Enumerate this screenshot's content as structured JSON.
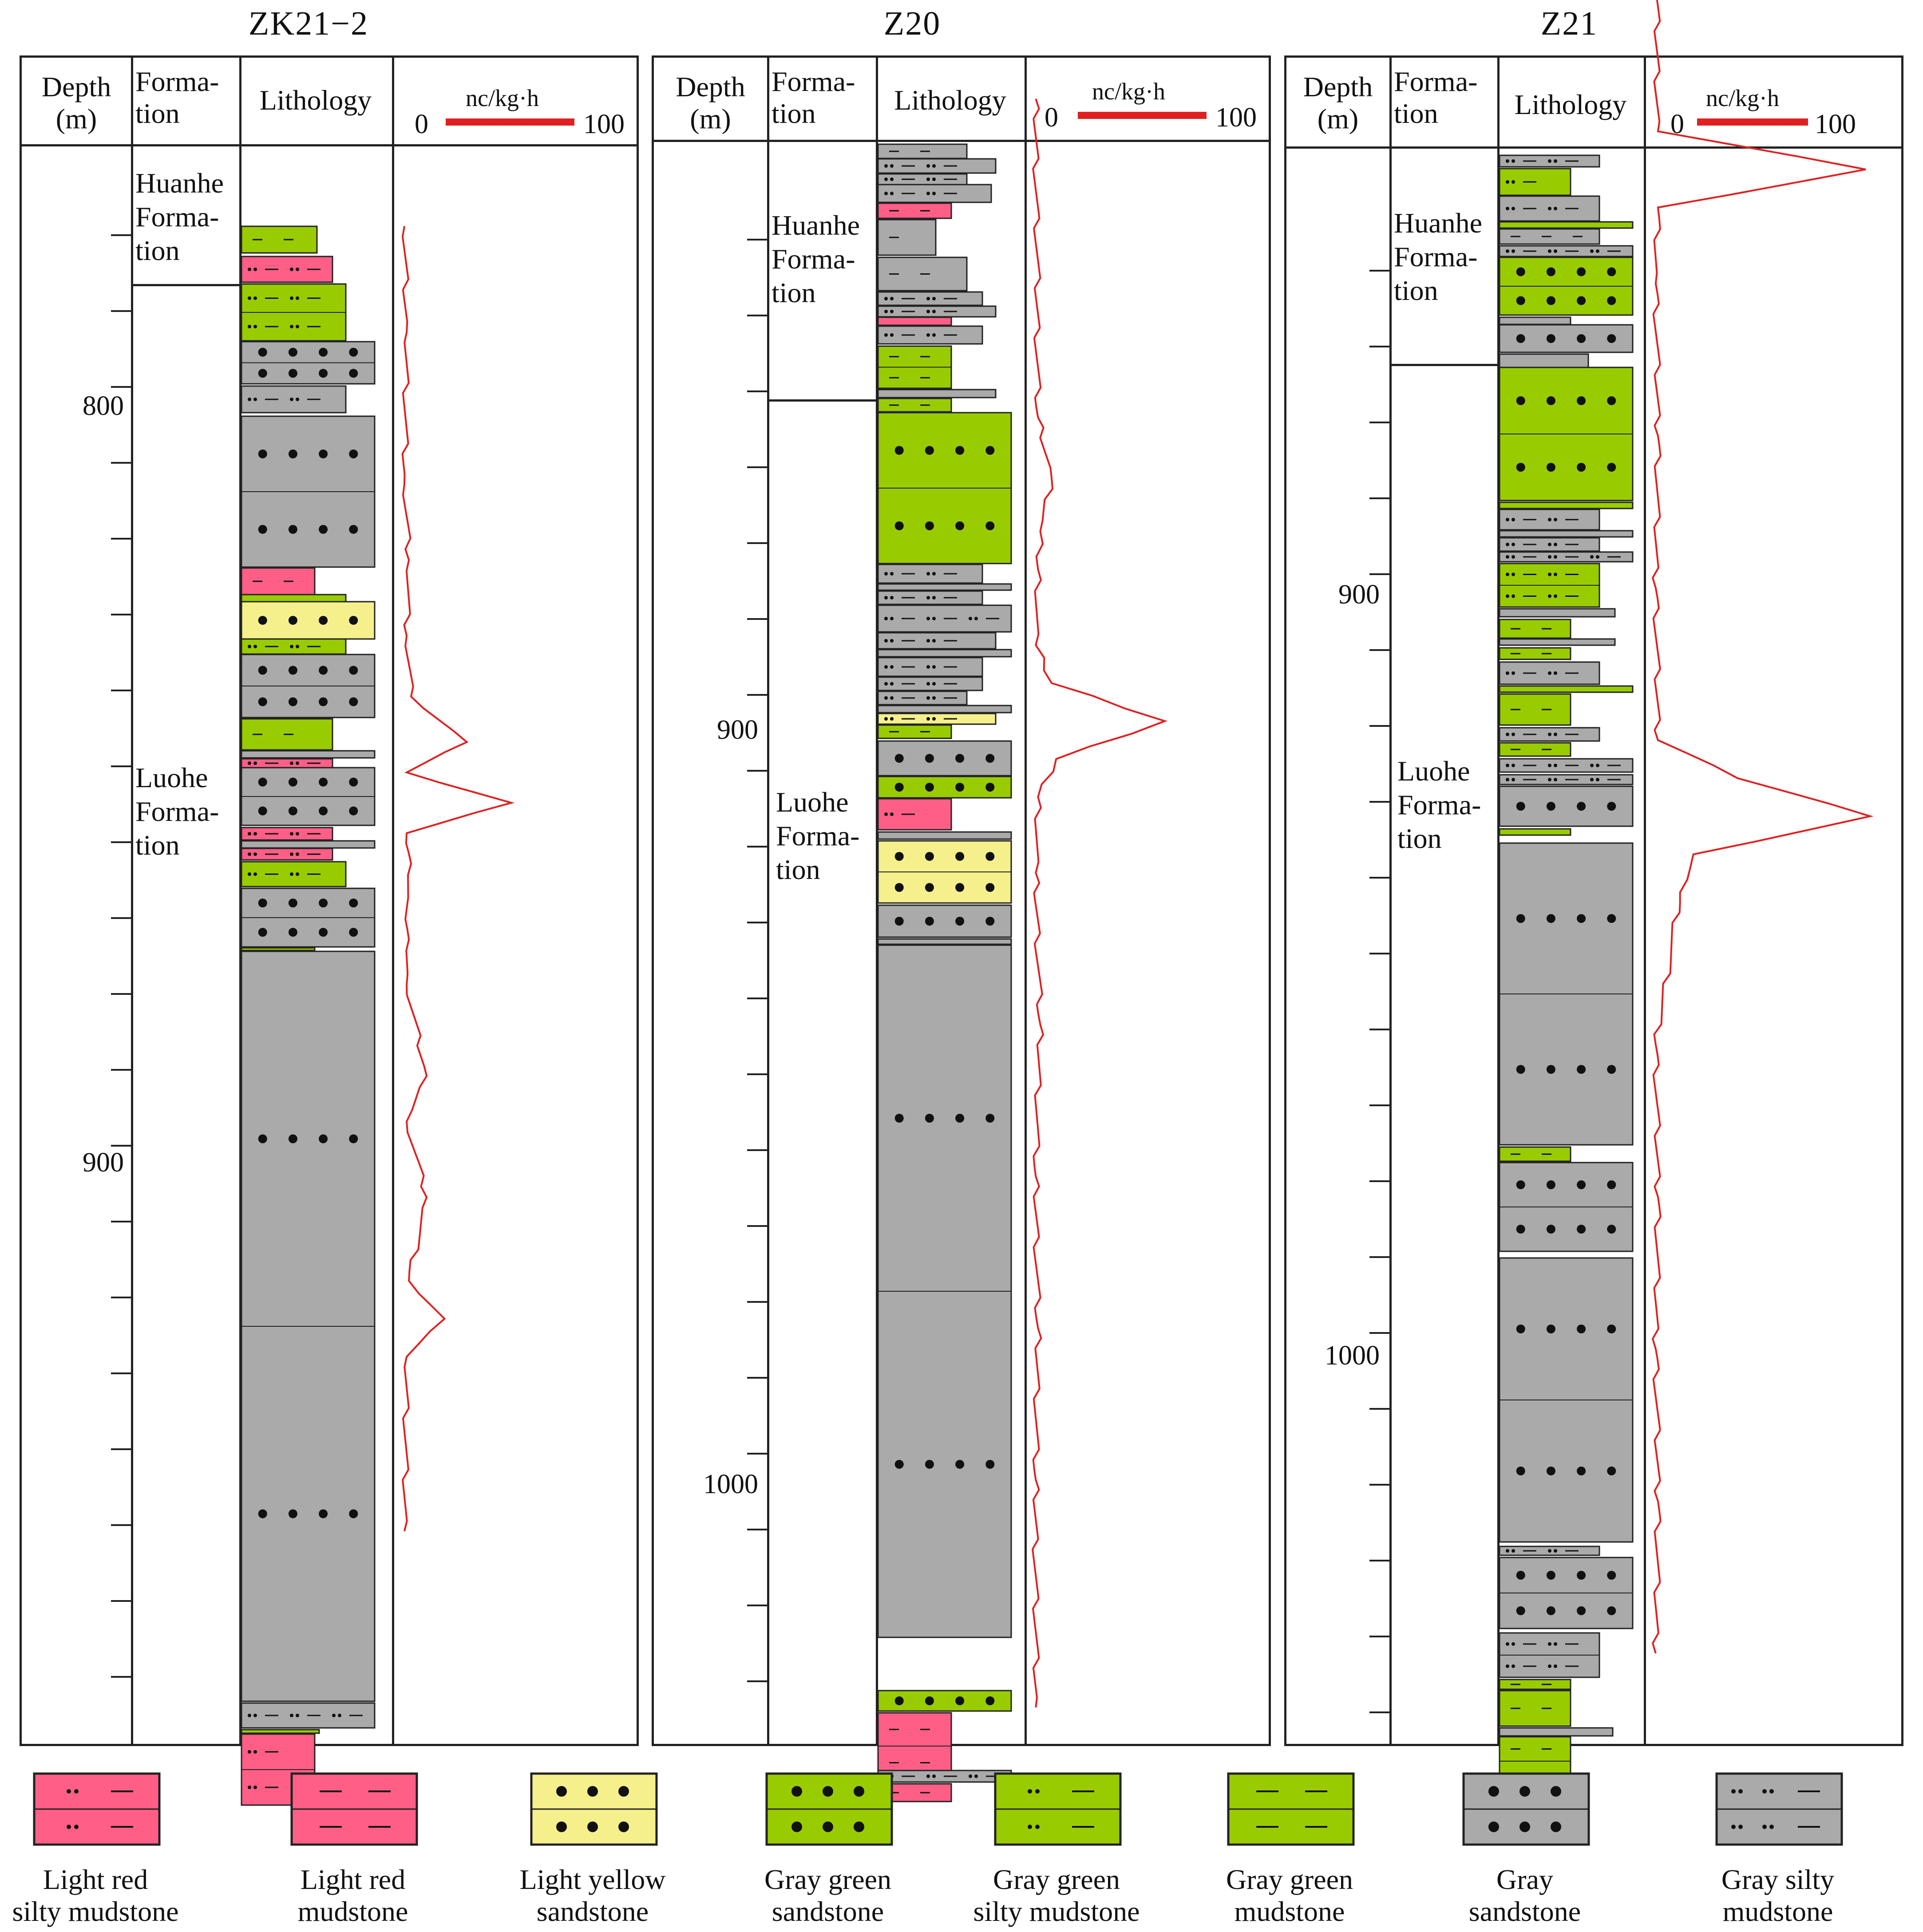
{
  "wells": [
    {
      "title": "ZK21−2",
      "headers": {
        "depth": "Depth\n(m)",
        "formation": "Forma-\ntion",
        "lithology": "Lithology",
        "unit": "nc/kg·h",
        "scale_min": "0",
        "scale_max": "100"
      },
      "formations": [
        {
          "name": "Huanhe\nForma-\ntion"
        },
        {
          "name": "Luohe\nForma-\ntion"
        }
      ],
      "depth_labels": [
        "800",
        "900"
      ]
    },
    {
      "title": "Z20",
      "headers": {
        "depth": "Depth\n(m)",
        "formation": "Forma-\ntion",
        "lithology": "Lithology",
        "unit": "nc/kg·h",
        "scale_min": "0",
        "scale_max": "100"
      },
      "formations": [
        {
          "name": "Huanhe\nForma-\ntion"
        },
        {
          "name": "Luohe\nForma-\ntion"
        }
      ],
      "depth_labels": [
        "900",
        "1000"
      ]
    },
    {
      "title": "Z21",
      "headers": {
        "depth": "Depth\n(m)",
        "formation": "Forma-\ntion",
        "lithology": "Lithology",
        "unit": "nc/kg·h",
        "scale_min": "0",
        "scale_max": "100"
      },
      "formations": [
        {
          "name": "Huanhe\nForma-\ntion"
        },
        {
          "name": "Luohe\nForma-\ntion"
        }
      ],
      "depth_labels": [
        "900",
        "1000"
      ]
    }
  ],
  "legend": [
    {
      "label": "Light red\nsilty mudstone",
      "color": "#ff5f87",
      "pattern": "silty"
    },
    {
      "label": "Light red\nmudstone",
      "color": "#ff5f87",
      "pattern": "mud"
    },
    {
      "label": "Light yellow\nsandstone",
      "color": "#f5f08c",
      "pattern": "sand"
    },
    {
      "label": "Gray green\nsandstone",
      "color": "#99cc00",
      "pattern": "sand"
    },
    {
      "label": "Gray green\nsilty mudstone",
      "color": "#99cc00",
      "pattern": "silty"
    },
    {
      "label": "Gray green\nmudstone",
      "color": "#99cc00",
      "pattern": "mud"
    },
    {
      "label": "Gray\nsandstone",
      "color": "#aaaaaa",
      "pattern": "sand"
    },
    {
      "label": "Gray silty\nmudstone",
      "color": "#aaaaaa",
      "pattern": "silty"
    }
  ],
  "colors": {
    "curve": "#e02020",
    "red": "#ff5f87",
    "yellow": "#f5f08c",
    "green": "#99cc00",
    "gray": "#aaaaaa",
    "line": "#222222"
  },
  "chart_data": {
    "type": "line",
    "x_unit": "nc/kg·h",
    "xlim": [
      0,
      100
    ],
    "series": [
      {
        "well": "ZK21−2",
        "depth_m": [
          776,
          790,
          810,
          820,
          830,
          838,
          844,
          848,
          852,
          856,
          860,
          866,
          870,
          876,
          888,
          894,
          904,
          915,
          920,
          925,
          948
        ],
        "values": [
          2,
          3,
          2,
          4,
          3,
          5,
          30,
          3,
          50,
          3,
          5,
          3,
          4,
          3,
          12,
          3,
          12,
          4,
          20,
          3,
          2
        ]
      },
      {
        "well": "Z20",
        "depth_m": [
          818,
          860,
          868,
          875,
          880,
          890,
          895,
          900,
          905,
          910,
          920,
          940,
          960,
          980,
          1000,
          1030
        ],
        "values": [
          3,
          4,
          10,
          5,
          4,
          3,
          10,
          60,
          12,
          4,
          3,
          5,
          3,
          4,
          3,
          3
        ]
      },
      {
        "well": "Z21",
        "depth_m": [
          815,
          840,
          845,
          850,
          860,
          880,
          900,
          920,
          925,
          930,
          935,
          940,
          960,
          980,
          1000,
          1020,
          1040
        ],
        "values": [
          3,
          4,
          98,
          4,
          3,
          4,
          3,
          4,
          40,
          100,
          20,
          14,
          3,
          4,
          3,
          4,
          3
        ]
      }
    ]
  }
}
